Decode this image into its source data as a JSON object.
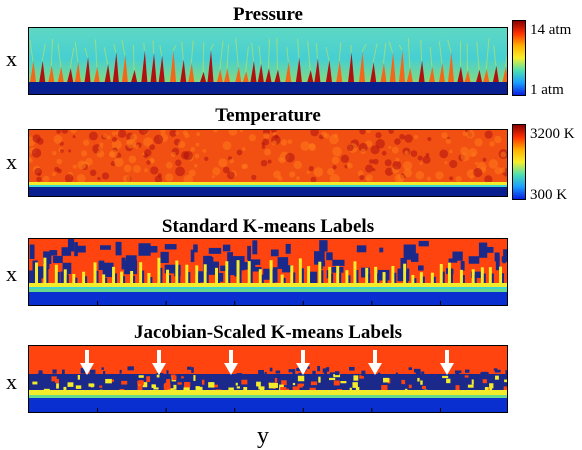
{
  "panels": [
    {
      "title": "Pressure"
    },
    {
      "title": "Temperature"
    },
    {
      "title": "Standard K-means Labels"
    },
    {
      "title": "Jacobian-Scaled K-means Labels"
    }
  ],
  "axes": {
    "x_label": "x",
    "y_label": "y"
  },
  "colorbars": {
    "pressure": {
      "max": "14 atm",
      "min": "1 atm"
    },
    "temperature": {
      "max": "3200 K",
      "min": "300 K"
    }
  },
  "arrow_count": 6,
  "colors": {
    "deep_blue": "#0a1f8f",
    "navy": "#1b2a8a",
    "cyan": "#3fd6d0",
    "green": "#66d98a",
    "yellow": "#f2ec2a",
    "orange": "#f4671a",
    "red_orange": "#ff4410",
    "dark_red": "#b01010",
    "arrow": "#ffffff"
  }
}
